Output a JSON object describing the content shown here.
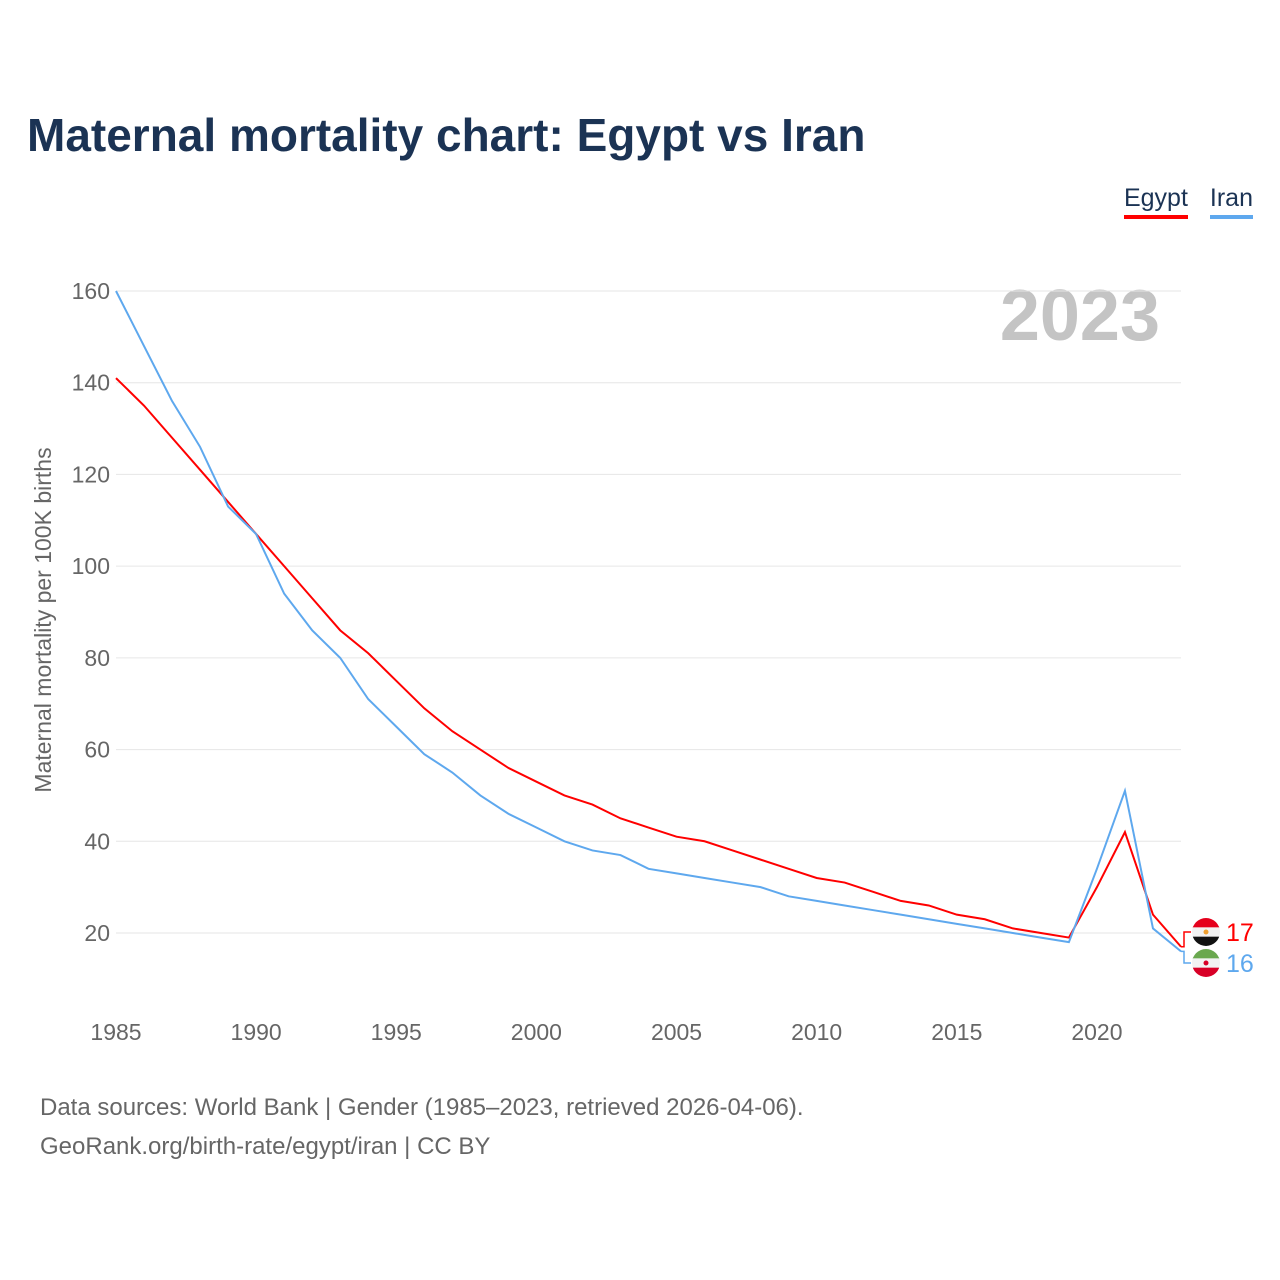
{
  "title": "Maternal mortality chart: Egypt vs Iran",
  "year_watermark": "2023",
  "footer": {
    "line1": "Data sources: World Bank | Gender (1985–2023, retrieved 2026-04-06).",
    "line2": "GeoRank.org/birth-rate/egypt/iran | CC BY"
  },
  "chart_data": {
    "type": "line",
    "title": "Maternal mortality chart: Egypt vs Iran",
    "ylabel": "Maternal mortality per 100K births",
    "xlabel": "",
    "xlim": [
      1985,
      2023
    ],
    "ylim": [
      20,
      160
    ],
    "yticks": [
      20,
      40,
      60,
      80,
      100,
      120,
      140,
      160
    ],
    "xticks": [
      1985,
      1990,
      1995,
      2000,
      2005,
      2010,
      2015,
      2020
    ],
    "grid": true,
    "legend": "top-right",
    "x": [
      1985,
      1986,
      1987,
      1988,
      1989,
      1990,
      1991,
      1992,
      1993,
      1994,
      1995,
      1996,
      1997,
      1998,
      1999,
      2000,
      2001,
      2002,
      2003,
      2004,
      2005,
      2006,
      2007,
      2008,
      2009,
      2010,
      2011,
      2012,
      2013,
      2014,
      2015,
      2016,
      2017,
      2018,
      2019,
      2020,
      2021,
      2022,
      2023
    ],
    "series": [
      {
        "name": "Egypt",
        "color": "#ff0000",
        "end_label": "17",
        "values": [
          141,
          135,
          128,
          121,
          114,
          107,
          100,
          93,
          86,
          81,
          75,
          69,
          64,
          60,
          56,
          53,
          50,
          48,
          45,
          43,
          41,
          40,
          38,
          36,
          34,
          32,
          31,
          29,
          27,
          26,
          24,
          23,
          21,
          20,
          19,
          30,
          42,
          24,
          17
        ]
      },
      {
        "name": "Iran",
        "color": "#5ea8ee",
        "end_label": "16",
        "values": [
          160,
          148,
          136,
          126,
          113,
          107,
          94,
          86,
          80,
          71,
          65,
          59,
          55,
          50,
          46,
          43,
          40,
          38,
          37,
          34,
          33,
          32,
          31,
          30,
          28,
          27,
          26,
          25,
          24,
          23,
          22,
          21,
          20,
          19,
          18,
          34,
          51,
          21,
          16
        ]
      }
    ]
  }
}
